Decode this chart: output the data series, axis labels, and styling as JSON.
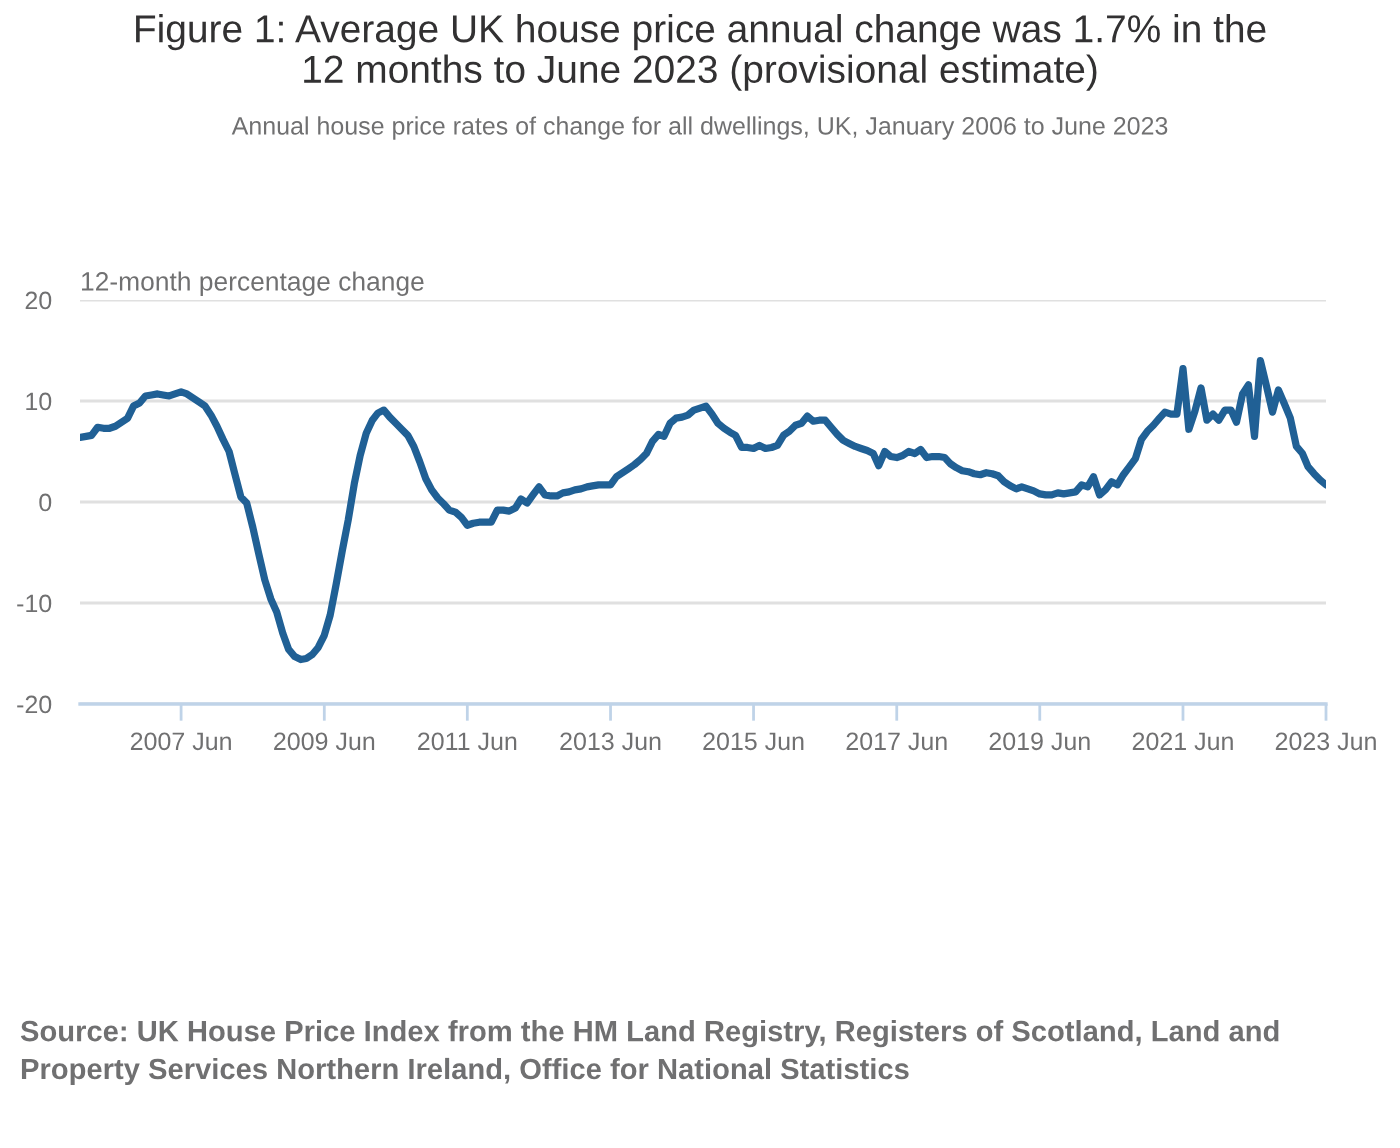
{
  "chart_data": {
    "type": "line",
    "title": "Figure 1: Average UK house price annual change was 1.7% in the 12 months to June 2023 (provisional estimate)",
    "subtitle": "Annual house price rates of change for all dwellings, UK, January 2006 to June 2023",
    "ylabel": "12-month percentage change",
    "annotations": [
      "Source: UK House Price Index from the HM Land Registry, Registers of Scotland, Land and Property Services Northern Ireland, Office for National Statistics"
    ],
    "x": [
      "2006-01",
      "2006-02",
      "2006-03",
      "2006-04",
      "2006-05",
      "2006-06",
      "2006-07",
      "2006-08",
      "2006-09",
      "2006-10",
      "2006-11",
      "2006-12",
      "2007-01",
      "2007-02",
      "2007-03",
      "2007-04",
      "2007-05",
      "2007-06",
      "2007-07",
      "2007-08",
      "2007-09",
      "2007-10",
      "2007-11",
      "2007-12",
      "2008-01",
      "2008-02",
      "2008-03",
      "2008-04",
      "2008-05",
      "2008-06",
      "2008-07",
      "2008-08",
      "2008-09",
      "2008-10",
      "2008-11",
      "2008-12",
      "2009-01",
      "2009-02",
      "2009-03",
      "2009-04",
      "2009-05",
      "2009-06",
      "2009-07",
      "2009-08",
      "2009-09",
      "2009-10",
      "2009-11",
      "2009-12",
      "2010-01",
      "2010-02",
      "2010-03",
      "2010-04",
      "2010-05",
      "2010-06",
      "2010-07",
      "2010-08",
      "2010-09",
      "2010-10",
      "2010-11",
      "2010-12",
      "2011-01",
      "2011-02",
      "2011-03",
      "2011-04",
      "2011-05",
      "2011-06",
      "2011-07",
      "2011-08",
      "2011-09",
      "2011-10",
      "2011-11",
      "2011-12",
      "2012-01",
      "2012-02",
      "2012-03",
      "2012-04",
      "2012-05",
      "2012-06",
      "2012-07",
      "2012-08",
      "2012-09",
      "2012-10",
      "2012-11",
      "2012-12",
      "2013-01",
      "2013-02",
      "2013-03",
      "2013-04",
      "2013-05",
      "2013-06",
      "2013-07",
      "2013-08",
      "2013-09",
      "2013-10",
      "2013-11",
      "2013-12",
      "2014-01",
      "2014-02",
      "2014-03",
      "2014-04",
      "2014-05",
      "2014-06",
      "2014-07",
      "2014-08",
      "2014-09",
      "2014-10",
      "2014-11",
      "2014-12",
      "2015-01",
      "2015-02",
      "2015-03",
      "2015-04",
      "2015-05",
      "2015-06",
      "2015-07",
      "2015-08",
      "2015-09",
      "2015-10",
      "2015-11",
      "2015-12",
      "2016-01",
      "2016-02",
      "2016-03",
      "2016-04",
      "2016-05",
      "2016-06",
      "2016-07",
      "2016-08",
      "2016-09",
      "2016-10",
      "2016-11",
      "2016-12",
      "2017-01",
      "2017-02",
      "2017-03",
      "2017-04",
      "2017-05",
      "2017-06",
      "2017-07",
      "2017-08",
      "2017-09",
      "2017-10",
      "2017-11",
      "2017-12",
      "2018-01",
      "2018-02",
      "2018-03",
      "2018-04",
      "2018-05",
      "2018-06",
      "2018-07",
      "2018-08",
      "2018-09",
      "2018-10",
      "2018-11",
      "2018-12",
      "2019-01",
      "2019-02",
      "2019-03",
      "2019-04",
      "2019-05",
      "2019-06",
      "2019-07",
      "2019-08",
      "2019-09",
      "2019-10",
      "2019-11",
      "2019-12",
      "2020-01",
      "2020-02",
      "2020-03",
      "2020-04",
      "2020-05",
      "2020-06",
      "2020-07",
      "2020-08",
      "2020-09",
      "2020-10",
      "2020-11",
      "2020-12",
      "2021-01",
      "2021-02",
      "2021-03",
      "2021-04",
      "2021-05",
      "2021-06",
      "2021-07",
      "2021-08",
      "2021-09",
      "2021-10",
      "2021-11",
      "2021-12",
      "2022-01",
      "2022-02",
      "2022-03",
      "2022-04",
      "2022-05",
      "2022-06",
      "2022-07",
      "2022-08",
      "2022-09",
      "2022-10",
      "2022-11",
      "2022-12",
      "2023-01",
      "2023-02",
      "2023-03",
      "2023-04",
      "2023-05",
      "2023-06"
    ],
    "values": [
      6.4,
      6.5,
      6.6,
      7.4,
      7.3,
      7.3,
      7.5,
      7.9,
      8.3,
      9.5,
      9.8,
      10.5,
      10.6,
      10.7,
      10.6,
      10.5,
      10.7,
      10.9,
      10.7,
      10.3,
      9.9,
      9.5,
      8.6,
      7.5,
      6.2,
      5.0,
      2.8,
      0.5,
      -0.1,
      -2.5,
      -5.1,
      -7.7,
      -9.6,
      -10.9,
      -13.0,
      -14.6,
      -15.3,
      -15.6,
      -15.5,
      -15.1,
      -14.4,
      -13.2,
      -11.2,
      -8.1,
      -4.8,
      -1.8,
      1.8,
      4.6,
      6.8,
      8.1,
      8.8,
      9.1,
      8.4,
      7.8,
      7.2,
      6.6,
      5.5,
      4.0,
      2.3,
      1.2,
      0.4,
      -0.2,
      -0.8,
      -1.0,
      -1.5,
      -2.3,
      -2.1,
      -2.0,
      -2.0,
      -2.0,
      -0.8,
      -0.8,
      -0.9,
      -0.6,
      0.3,
      -0.1,
      0.7,
      1.5,
      0.7,
      0.6,
      0.6,
      0.9,
      1.0,
      1.2,
      1.3,
      1.5,
      1.6,
      1.7,
      1.7,
      1.7,
      2.5,
      2.9,
      3.3,
      3.7,
      4.2,
      4.8,
      6.0,
      6.7,
      6.5,
      7.8,
      8.3,
      8.4,
      8.6,
      9.1,
      9.3,
      9.5,
      8.7,
      7.8,
      7.3,
      6.9,
      6.6,
      5.4,
      5.4,
      5.3,
      5.6,
      5.3,
      5.4,
      5.6,
      6.6,
      7.0,
      7.6,
      7.8,
      8.5,
      8.0,
      8.1,
      8.1,
      7.4,
      6.7,
      6.1,
      5.8,
      5.5,
      5.3,
      5.1,
      4.8,
      3.6,
      5.0,
      4.5,
      4.4,
      4.6,
      5.0,
      4.8,
      5.2,
      4.4,
      4.5,
      4.5,
      4.4,
      3.8,
      3.4,
      3.1,
      3.0,
      2.8,
      2.7,
      2.9,
      2.8,
      2.6,
      2.0,
      1.6,
      1.3,
      1.5,
      1.3,
      1.1,
      0.8,
      0.7,
      0.7,
      0.9,
      0.8,
      0.9,
      1.0,
      1.7,
      1.5,
      2.5,
      0.7,
      1.2,
      2.0,
      1.7,
      2.7,
      3.5,
      4.3,
      6.2,
      7.0,
      7.6,
      8.3,
      8.9,
      8.7,
      8.7,
      13.2,
      7.2,
      9.0,
      11.3,
      8.1,
      8.7,
      8.1,
      9.1,
      9.1,
      7.9,
      10.7,
      11.6,
      6.5,
      14.0,
      11.5,
      8.9,
      11.1,
      9.7,
      8.3,
      5.5,
      4.8,
      3.5,
      2.8,
      2.2,
      1.7
    ],
    "color": "#206095",
    "xlim": [
      "2006-01",
      "2023-06"
    ],
    "xticks": [
      {
        "value": "2007-06",
        "label": "2007 Jun"
      },
      {
        "value": "2009-06",
        "label": "2009 Jun"
      },
      {
        "value": "2011-06",
        "label": "2011 Jun"
      },
      {
        "value": "2013-06",
        "label": "2013 Jun"
      },
      {
        "value": "2015-06",
        "label": "2015 Jun"
      },
      {
        "value": "2017-06",
        "label": "2017 Jun"
      },
      {
        "value": "2019-06",
        "label": "2019 Jun"
      },
      {
        "value": "2021-06",
        "label": "2021 Jun"
      },
      {
        "value": "2023-06",
        "label": "2023 Jun"
      }
    ],
    "ylim": [
      -20,
      20
    ],
    "yticks": [
      -20,
      -10,
      0,
      10,
      20
    ],
    "grid": "y"
  }
}
